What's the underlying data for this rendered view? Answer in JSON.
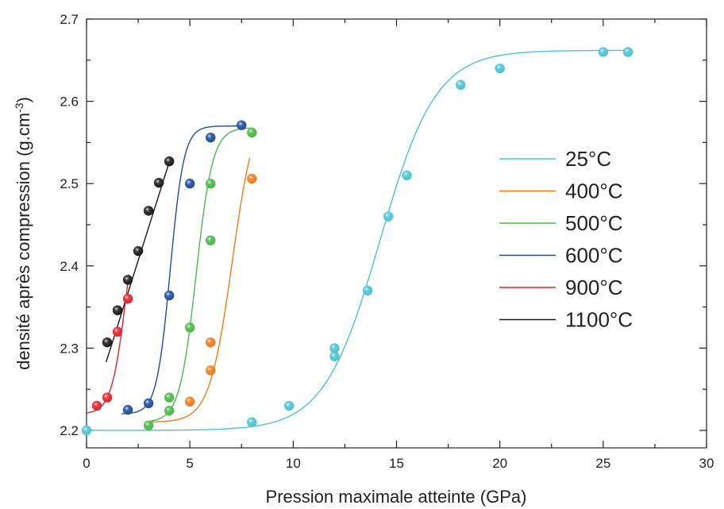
{
  "chart_data": {
    "type": "scatter",
    "xlabel": "Pression maximale atteinte (GPa)",
    "ylabel": "densité après compression (g.cm",
    "ylabel_sup": "-3",
    "ylabel_close": ")",
    "xlim": [
      0,
      30
    ],
    "ylim": [
      2.2,
      2.7
    ],
    "xticks": [
      "0",
      "5",
      "10",
      "15",
      "20",
      "25",
      "30"
    ],
    "yticks": [
      "2.2",
      "2.3",
      "2.4",
      "2.5",
      "2.6",
      "2.7"
    ],
    "legend_position": "right",
    "series": [
      {
        "name": "25°C",
        "color": "#4dc3d3",
        "points": [
          [
            0,
            2.2
          ],
          [
            8,
            2.21
          ],
          [
            9.8,
            2.23
          ],
          [
            12,
            2.29
          ],
          [
            12,
            2.3
          ],
          [
            13.6,
            2.37
          ],
          [
            14.6,
            2.46
          ],
          [
            15.5,
            2.51
          ],
          [
            18.1,
            2.62
          ],
          [
            20,
            2.64
          ],
          [
            25,
            2.66
          ],
          [
            26.2,
            2.66
          ]
        ],
        "fit": {
          "A1": 2.2,
          "A2": 2.662,
          "x0": 14.2,
          "dx": 1.35,
          "from": 0,
          "to": 26.2
        }
      },
      {
        "name": "400°C",
        "color": "#f07c1e",
        "points": [
          [
            5,
            2.235
          ],
          [
            6,
            2.273
          ],
          [
            6,
            2.307
          ],
          [
            8,
            2.506
          ]
        ],
        "fit": {
          "A1": 2.21,
          "A2": 2.6,
          "x0": 7.05,
          "dx": 0.55,
          "from": 3,
          "to": 7.9
        }
      },
      {
        "name": "500°C",
        "color": "#4cb848",
        "points": [
          [
            3,
            2.206
          ],
          [
            4,
            2.224
          ],
          [
            4,
            2.24
          ],
          [
            5,
            2.325
          ],
          [
            6,
            2.431
          ],
          [
            6,
            2.5
          ],
          [
            8,
            2.562
          ]
        ],
        "fit": {
          "A1": 2.21,
          "A2": 2.568,
          "x0": 5.3,
          "dx": 0.4,
          "from": 3,
          "to": 8
        }
      },
      {
        "name": "600°C",
        "color": "#1f4e9c",
        "points": [
          [
            2,
            2.225
          ],
          [
            3,
            2.233
          ],
          [
            4,
            2.364
          ],
          [
            5,
            2.5
          ],
          [
            6,
            2.556
          ],
          [
            7.5,
            2.571
          ]
        ],
        "fit": {
          "A1": 2.22,
          "A2": 2.57,
          "x0": 4.05,
          "dx": 0.33,
          "from": 1.7,
          "to": 7.6
        }
      },
      {
        "name": "900°C",
        "color": "#e3232a",
        "points": [
          [
            0.5,
            2.23
          ],
          [
            1,
            2.24
          ],
          [
            1.5,
            2.32
          ],
          [
            2,
            2.36
          ]
        ],
        "fit": {
          "A1": 2.22,
          "A2": 2.5,
          "x0": 1.9,
          "dx": 0.35,
          "from": 0,
          "to": 2.05
        }
      },
      {
        "name": "1100°C",
        "color": "#1a1a1a",
        "points": [
          [
            1,
            2.307
          ],
          [
            1.5,
            2.346
          ],
          [
            2,
            2.383
          ],
          [
            2.5,
            2.418
          ],
          [
            3,
            2.467
          ],
          [
            3.5,
            2.501
          ],
          [
            4,
            2.527
          ]
        ],
        "linear": {
          "from": [
            0.95,
            2.283
          ],
          "to": [
            4.05,
            2.53
          ]
        }
      }
    ]
  }
}
